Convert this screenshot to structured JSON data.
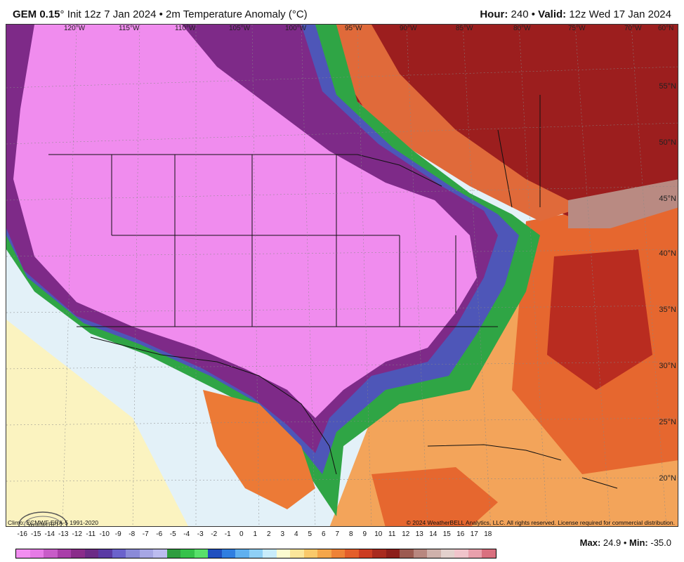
{
  "header": {
    "model": "GEM 0.15",
    "degree": "°",
    "init_text": " Init 12z 7 Jan 2024 • 2m Temperature Anomaly (°C)",
    "hour_label": "Hour:",
    "hour_value": "240",
    "valid_label": "Valid:",
    "valid_value": "12z Wed 17 Jan 2024"
  },
  "map": {
    "lon_labels": [
      "120°W",
      "115°W",
      "110°W",
      "105°W",
      "100°W",
      "95°W",
      "90°W",
      "85°W",
      "80°W",
      "75°W",
      "70°W",
      "60°N"
    ],
    "lat_labels": [
      "55°N",
      "50°N",
      "45°N",
      "40°N",
      "35°N",
      "30°N",
      "25°N",
      "20°N"
    ],
    "climo_text": "Climo: ECMWF ERA-5 1991-2020",
    "copyright_text": "© 2024 WeatherBELL Analytics, LLC. All rights reserved. License required for commercial distribution.",
    "logo_text": "WeatherBELL"
  },
  "legend": {
    "ticks": [
      "-16",
      "-15",
      "-14",
      "-13",
      "-12",
      "-11",
      "-10",
      "-9",
      "-8",
      "-7",
      "-6",
      "-5",
      "-4",
      "-3",
      "-2",
      "-1",
      "0",
      "1",
      "2",
      "3",
      "4",
      "5",
      "6",
      "7",
      "8",
      "9",
      "10",
      "11",
      "12",
      "13",
      "14",
      "15",
      "16",
      "17",
      "18"
    ],
    "colors": [
      "#f28ef0",
      "#e67ae6",
      "#c85cc8",
      "#a93ea9",
      "#8a2c8a",
      "#6c2b86",
      "#5a3aa4",
      "#6a62cc",
      "#8a8ad8",
      "#a6a6e4",
      "#bcbcef",
      "#2f9d3f",
      "#35c14a",
      "#58e06a",
      "#1f4fbf",
      "#2f7ee0",
      "#5fb0ef",
      "#8fd0f6",
      "#c8ecfb",
      "#fbfbd0",
      "#fbe69a",
      "#f9c96a",
      "#f4a64a",
      "#ee8236",
      "#e35e2a",
      "#cc3c22",
      "#a82a1e",
      "#8c1e1a",
      "#9c5a50",
      "#b8877f",
      "#cfb1ab",
      "#e3d1cd",
      "#f0c4cb",
      "#e8a0ac",
      "#d9707f"
    ],
    "max_label": "Max:",
    "max_value": "24.9",
    "min_label": "Min:",
    "min_value": "-35.0"
  }
}
